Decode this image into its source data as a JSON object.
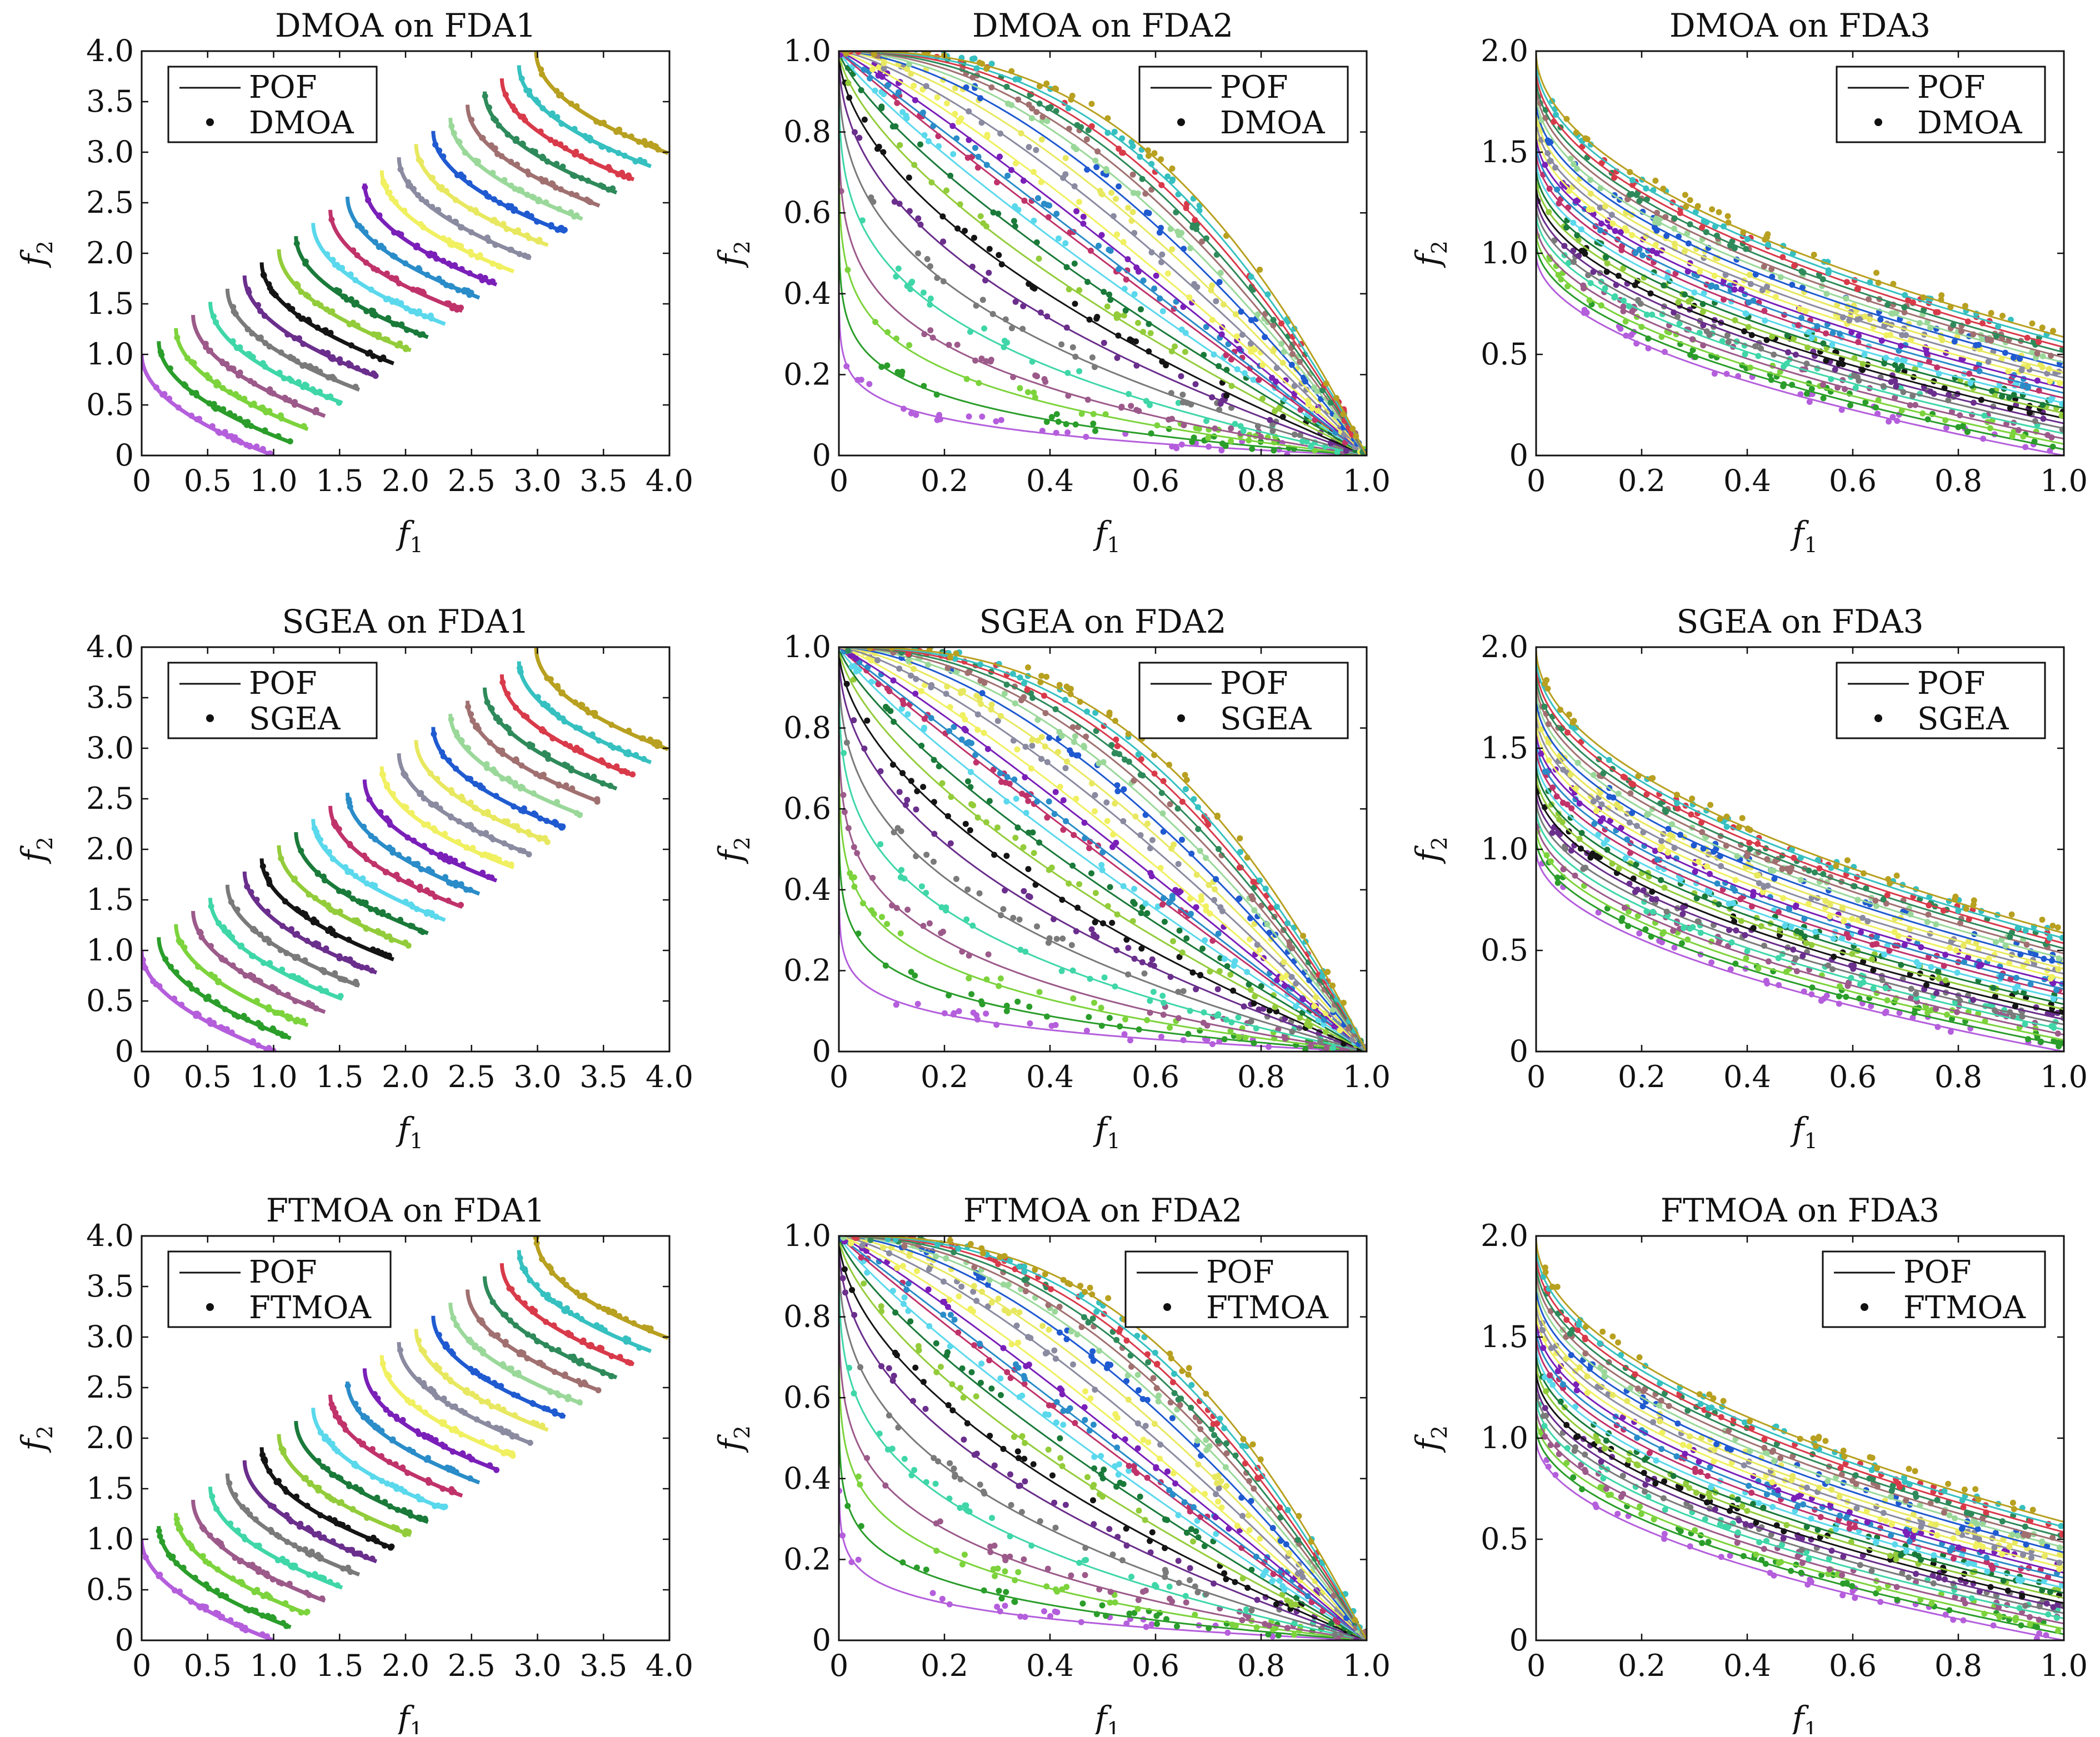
{
  "figure": {
    "rows": [
      "DMOA",
      "SGEA",
      "FTMOA"
    ],
    "cols": [
      "FDA1",
      "FDA2",
      "FDA3"
    ],
    "ylabel_main": "f",
    "ylabel_sub": "2",
    "xlabel_main": "f",
    "xlabel_sub": "1",
    "legend_line": "POF",
    "grid": false
  },
  "colors": [
    "#b45edc",
    "#2a9d2a",
    "#7cd33c",
    "#9c5a8a",
    "#3fd6a8",
    "#7a7a7a",
    "#6a2e8c",
    "#141414",
    "#93cc3a",
    "#1a7a3a",
    "#5ad8ec",
    "#c0336a",
    "#2a8cc8",
    "#7a1fb8",
    "#f0f060",
    "#8a8aa0",
    "#e8e860",
    "#1f5ad0",
    "#9ad89a",
    "#a07070",
    "#2e8a5a",
    "#d83a4a",
    "#36c0c0",
    "#b8a020"
  ],
  "chart_data": [
    {
      "type": "scatter",
      "title": "DMOA on FDA1",
      "problem": "FDA1",
      "algorithm": "DMOA",
      "legend": [
        "POF",
        "DMOA"
      ],
      "legend_position": "top-left",
      "xlim": [
        0,
        4
      ],
      "ylim": [
        0,
        4
      ],
      "xticks": [
        "0",
        "0.5",
        "1.0",
        "1.5",
        "2.0",
        "2.5",
        "3.0",
        "3.5",
        "4.0"
      ],
      "yticks": [
        "0",
        "0.5",
        "1.0",
        "1.5",
        "2.0",
        "2.5",
        "3.0",
        "3.5",
        "4.0"
      ],
      "xlabel": "f1",
      "ylabel": "f2",
      "fronts": {
        "count": 24,
        "shift_step": 0.13,
        "pof": "f2 = (1 + s) - sqrt(f1 - s), f1 in [s, s+1]"
      }
    },
    {
      "type": "scatter",
      "title": "DMOA on FDA2",
      "problem": "FDA2",
      "algorithm": "DMOA",
      "legend": [
        "POF",
        "DMOA"
      ],
      "legend_position": "top-right",
      "xlim": [
        0,
        1
      ],
      "ylim": [
        0,
        1
      ],
      "xticks": [
        "0",
        "0.2",
        "0.4",
        "0.6",
        "0.8",
        "1.0"
      ],
      "yticks": [
        "0",
        "0.2",
        "0.4",
        "0.6",
        "0.8",
        "1.0"
      ],
      "xlabel": "f1",
      "ylabel": "f2",
      "fronts": {
        "count": 24,
        "exponents": [
          0.06,
          0.1,
          0.15,
          0.2,
          0.27,
          0.35,
          0.45,
          0.55,
          0.65,
          0.75,
          0.85,
          0.95,
          1.0,
          1.1,
          1.2,
          1.35,
          1.5,
          1.65,
          1.8,
          1.95,
          2.1,
          2.25,
          2.4,
          2.6
        ],
        "pof": "f2 = 1 - f1^p"
      }
    },
    {
      "type": "scatter",
      "title": "DMOA on FDA3",
      "problem": "FDA3",
      "algorithm": "DMOA",
      "legend": [
        "POF",
        "DMOA"
      ],
      "legend_position": "top-right",
      "xlim": [
        0,
        1
      ],
      "ylim": [
        0,
        2
      ],
      "xticks": [
        "0",
        "0.2",
        "0.4",
        "0.6",
        "0.8",
        "1.0"
      ],
      "yticks": [
        "0",
        "0.5",
        "1.0",
        "1.5",
        "2.0"
      ],
      "xlabel": "f1",
      "ylabel": "f2",
      "fronts": {
        "count": 24,
        "g_min": 1.0,
        "g_max": 2.0,
        "pof": "f2 = g (1 - sqrt(f1 / g))"
      }
    },
    {
      "type": "scatter",
      "title": "SGEA on FDA1",
      "problem": "FDA1",
      "algorithm": "SGEA",
      "legend": [
        "POF",
        "SGEA"
      ],
      "legend_position": "top-left",
      "xlim": [
        0,
        4
      ],
      "ylim": [
        0,
        4
      ],
      "xticks": [
        "0",
        "0.5",
        "1.0",
        "1.5",
        "2.0",
        "2.5",
        "3.0",
        "3.5",
        "4.0"
      ],
      "yticks": [
        "0",
        "0.5",
        "1.0",
        "1.5",
        "2.0",
        "2.5",
        "3.0",
        "3.5",
        "4.0"
      ],
      "xlabel": "f1",
      "ylabel": "f2",
      "fronts": {
        "count": 24,
        "shift_step": 0.13,
        "pof": "f2 = (1 + s) - sqrt(f1 - s), f1 in [s, s+1]"
      }
    },
    {
      "type": "scatter",
      "title": "SGEA on FDA2",
      "problem": "FDA2",
      "algorithm": "SGEA",
      "legend": [
        "POF",
        "SGEA"
      ],
      "legend_position": "top-right",
      "xlim": [
        0,
        1
      ],
      "ylim": [
        0,
        1
      ],
      "xticks": [
        "0",
        "0.2",
        "0.4",
        "0.6",
        "0.8",
        "1.0"
      ],
      "yticks": [
        "0",
        "0.2",
        "0.4",
        "0.6",
        "0.8",
        "1.0"
      ],
      "xlabel": "f1",
      "ylabel": "f2",
      "fronts": {
        "count": 24,
        "exponents": [
          0.06,
          0.1,
          0.15,
          0.2,
          0.27,
          0.35,
          0.45,
          0.55,
          0.65,
          0.75,
          0.85,
          0.95,
          1.0,
          1.1,
          1.2,
          1.35,
          1.5,
          1.65,
          1.8,
          1.95,
          2.1,
          2.25,
          2.4,
          2.6
        ],
        "pof": "f2 = 1 - f1^p"
      }
    },
    {
      "type": "scatter",
      "title": "SGEA on FDA3",
      "problem": "FDA3",
      "algorithm": "SGEA",
      "legend": [
        "POF",
        "SGEA"
      ],
      "legend_position": "top-right",
      "xlim": [
        0,
        1
      ],
      "ylim": [
        0,
        2
      ],
      "xticks": [
        "0",
        "0.2",
        "0.4",
        "0.6",
        "0.8",
        "1.0"
      ],
      "yticks": [
        "0",
        "0.5",
        "1.0",
        "1.5",
        "2.0"
      ],
      "xlabel": "f1",
      "ylabel": "f2",
      "fronts": {
        "count": 24,
        "g_min": 1.0,
        "g_max": 2.0,
        "pof": "f2 = g (1 - sqrt(f1 / g))"
      }
    },
    {
      "type": "scatter",
      "title": "FTMOA on FDA1",
      "problem": "FDA1",
      "algorithm": "FTMOA",
      "legend": [
        "POF",
        "FTMOA"
      ],
      "legend_position": "top-left",
      "xlim": [
        0,
        4
      ],
      "ylim": [
        0,
        4
      ],
      "xticks": [
        "0",
        "0.5",
        "1.0",
        "1.5",
        "2.0",
        "2.5",
        "3.0",
        "3.5",
        "4.0"
      ],
      "yticks": [
        "0",
        "0.5",
        "1.0",
        "1.5",
        "2.0",
        "2.5",
        "3.0",
        "3.5",
        "4.0"
      ],
      "xlabel": "f1",
      "ylabel": "f2",
      "fronts": {
        "count": 24,
        "shift_step": 0.13,
        "pof": "f2 = (1 + s) - sqrt(f1 - s), f1 in [s, s+1]"
      }
    },
    {
      "type": "scatter",
      "title": "FTMOA on FDA2",
      "problem": "FDA2",
      "algorithm": "FTMOA",
      "legend": [
        "POF",
        "FTMOA"
      ],
      "legend_position": "top-right",
      "xlim": [
        0,
        1
      ],
      "ylim": [
        0,
        1
      ],
      "xticks": [
        "0",
        "0.2",
        "0.4",
        "0.6",
        "0.8",
        "1.0"
      ],
      "yticks": [
        "0",
        "0.2",
        "0.4",
        "0.6",
        "0.8",
        "1.0"
      ],
      "xlabel": "f1",
      "ylabel": "f2",
      "fronts": {
        "count": 24,
        "exponents": [
          0.06,
          0.1,
          0.15,
          0.2,
          0.27,
          0.35,
          0.45,
          0.55,
          0.65,
          0.75,
          0.85,
          0.95,
          1.0,
          1.1,
          1.2,
          1.35,
          1.5,
          1.65,
          1.8,
          1.95,
          2.1,
          2.25,
          2.4,
          2.6
        ],
        "pof": "f2 = 1 - f1^p"
      }
    },
    {
      "type": "scatter",
      "title": "FTMOA on FDA3",
      "problem": "FDA3",
      "algorithm": "FTMOA",
      "legend": [
        "POF",
        "FTMOA"
      ],
      "legend_position": "top-right",
      "xlim": [
        0,
        1
      ],
      "ylim": [
        0,
        2
      ],
      "xticks": [
        "0",
        "0.2",
        "0.4",
        "0.6",
        "0.8",
        "1.0"
      ],
      "yticks": [
        "0",
        "0.5",
        "1.0",
        "1.5",
        "2.0"
      ],
      "xlabel": "f1",
      "ylabel": "f2",
      "fronts": {
        "count": 24,
        "g_min": 1.0,
        "g_max": 2.0,
        "pof": "f2 = g (1 - sqrt(f1 / g))"
      }
    }
  ]
}
